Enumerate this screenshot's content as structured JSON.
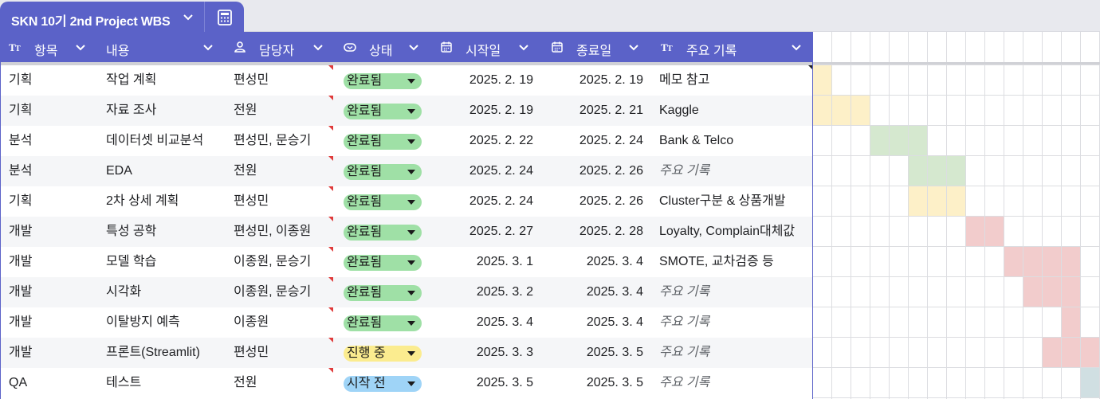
{
  "tab": {
    "title": "SKN 10기 2nd Project WBS"
  },
  "columns": [
    {
      "key": "item",
      "label": "항목",
      "icon": "text-type-icon"
    },
    {
      "key": "content",
      "label": "내용",
      "icon": ""
    },
    {
      "key": "owner",
      "label": "담당자",
      "icon": "person-icon"
    },
    {
      "key": "status",
      "label": "상태",
      "icon": "status-icon"
    },
    {
      "key": "start",
      "label": "시작일",
      "icon": "calendar-icon"
    },
    {
      "key": "end",
      "label": "종료일",
      "icon": "calendar-icon"
    },
    {
      "key": "notes",
      "label": "주요 기록",
      "icon": "text-type-icon"
    }
  ],
  "note_placeholder": "주요 기록",
  "status_colors": {
    "완료됨": "#9fe0a6",
    "진행 중": "#fbec8f",
    "시작 전": "#9fd4f7"
  },
  "rows": [
    {
      "item": "기획",
      "content": "작업 계획",
      "owner": "편성민",
      "status": "완료됨",
      "start": "2025. 2. 19",
      "end": "2025. 2. 19",
      "notes": "메모 참고",
      "gantt_color": "#fdf0c8"
    },
    {
      "item": "기획",
      "content": "자료 조사",
      "owner": "전원",
      "status": "완료됨",
      "start": "2025. 2. 19",
      "end": "2025. 2. 21",
      "notes": "Kaggle",
      "gantt_color": "#fdf0c8"
    },
    {
      "item": "분석",
      "content": "데이터셋 비교분석",
      "owner": "편성민, 문승기",
      "status": "완료됨",
      "start": "2025. 2. 22",
      "end": "2025. 2. 24",
      "notes": "Bank & Telco",
      "gantt_color": "#d5e8cf"
    },
    {
      "item": "분석",
      "content": "EDA",
      "owner": "전원",
      "status": "완료됨",
      "start": "2025. 2. 24",
      "end": "2025. 2. 26",
      "notes": "",
      "gantt_color": "#d5e8cf"
    },
    {
      "item": "기획",
      "content": "2차 상세 계획",
      "owner": "편성민",
      "status": "완료됨",
      "start": "2025. 2. 24",
      "end": "2025. 2. 26",
      "notes": "Cluster구분 & 상품개발",
      "gantt_color": "#fdf0c8"
    },
    {
      "item": "개발",
      "content": "특성 공학",
      "owner": "편성민, 이종원",
      "status": "완료됨",
      "start": "2025. 2. 27",
      "end": "2025. 2. 28",
      "notes": "Loyalty, Complain대체값",
      "gantt_color": "#f2cccc"
    },
    {
      "item": "개발",
      "content": "모델 학습",
      "owner": "이종원, 문승기",
      "status": "완료됨",
      "start": "2025. 3. 1",
      "end": "2025. 3. 4",
      "notes": "SMOTE, 교차검증 등",
      "gantt_color": "#f2cccc"
    },
    {
      "item": "개발",
      "content": "시각화",
      "owner": "이종원, 문승기",
      "status": "완료됨",
      "start": "2025. 3. 2",
      "end": "2025. 3. 4",
      "notes": "",
      "gantt_color": "#f2cccc"
    },
    {
      "item": "개발",
      "content": "이탈방지 예측",
      "owner": "이종원",
      "status": "완료됨",
      "start": "2025. 3. 4",
      "end": "2025. 3. 4",
      "notes": "",
      "gantt_color": "#f2cccc"
    },
    {
      "item": "개발",
      "content": "프론트(Streamlit)",
      "owner": "편성민",
      "status": "진행 중",
      "start": "2025. 3. 3",
      "end": "2025. 3. 5",
      "notes": "",
      "gantt_color": "#f2cccc"
    },
    {
      "item": "QA",
      "content": "테스트",
      "owner": "전원",
      "status": "시작 전",
      "start": "2025. 3. 5",
      "end": "2025. 3. 5",
      "notes": "",
      "gantt_color": "#d0dfe2"
    }
  ],
  "gantt": {
    "first_date": "2025. 2. 19",
    "visible_days": 15
  }
}
